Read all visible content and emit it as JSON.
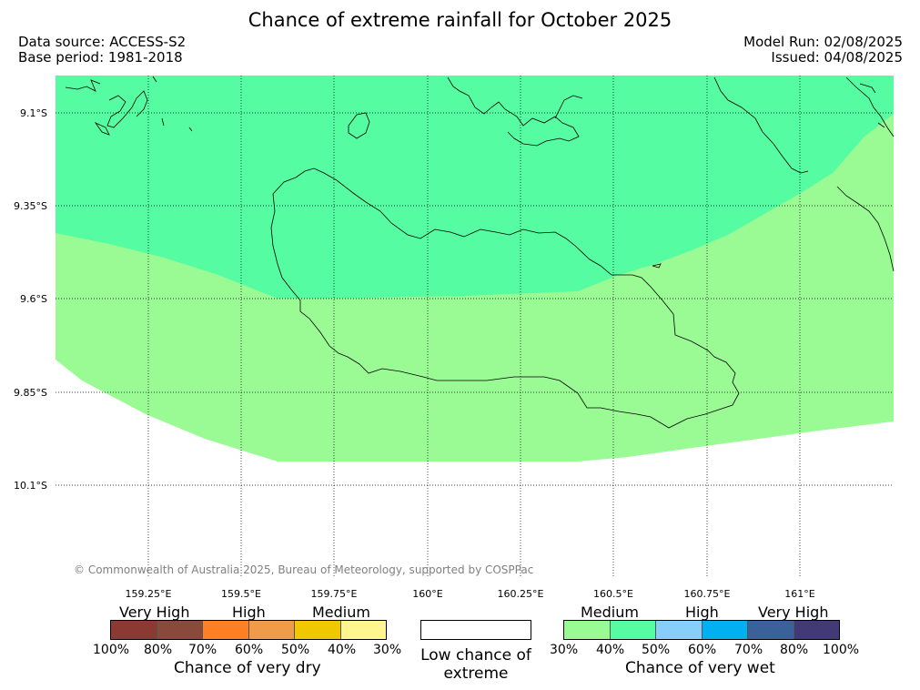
{
  "title": "Chance of extreme rainfall for October 2025",
  "source": {
    "data_source": "Data source: ACCESS-S2",
    "base_period": "Base period: 1981-2018",
    "model_run": "Model Run: 02/08/2025",
    "issued": "Issued: 04/08/2025"
  },
  "map": {
    "latitudes": [
      "9.1°S",
      "9.35°S",
      "9.6°S",
      "9.85°S",
      "10.1°S"
    ],
    "longitudes": [
      "159.25°E",
      "159.5°E",
      "159.75°E",
      "160°E",
      "160.25°E",
      "160.5°E",
      "160.75°E",
      "161°E"
    ],
    "lon_range": [
      159.0,
      161.25
    ],
    "lat_range": [
      -10.35,
      -8.99
    ],
    "regions": [
      {
        "name": "wet-40-50",
        "color": "#55fca1",
        "category": "Medium",
        "range": "40%-50%"
      },
      {
        "name": "wet-30-40",
        "color": "#9afb94",
        "category": "Medium",
        "range": "30%-40%"
      }
    ]
  },
  "copyright": "© Commonwealth of Australia 2025, Bureau of Meteorology, supported by COSPPac",
  "legend": {
    "dry": {
      "categories": [
        "Very High",
        "High",
        "Medium"
      ],
      "colors": [
        "#8b3a33",
        "#8a4a3b",
        "#ff7f25",
        "#ef9b4a",
        "#f0c800",
        "#fff68f"
      ],
      "ticks": [
        "100%",
        "80%",
        "70%",
        "60%",
        "50%",
        "40%",
        "30%"
      ],
      "label": "Chance of very dry"
    },
    "low": {
      "label": "Low chance of extreme"
    },
    "wet": {
      "categories": [
        "Medium",
        "High",
        "Very High"
      ],
      "colors": [
        "#9afb94",
        "#55fca1",
        "#87cefa",
        "#00b0f0",
        "#3a6199",
        "#423a77"
      ],
      "ticks": [
        "30%",
        "40%",
        "50%",
        "60%",
        "70%",
        "80%",
        "100%"
      ],
      "label": "Chance of very wet"
    }
  }
}
